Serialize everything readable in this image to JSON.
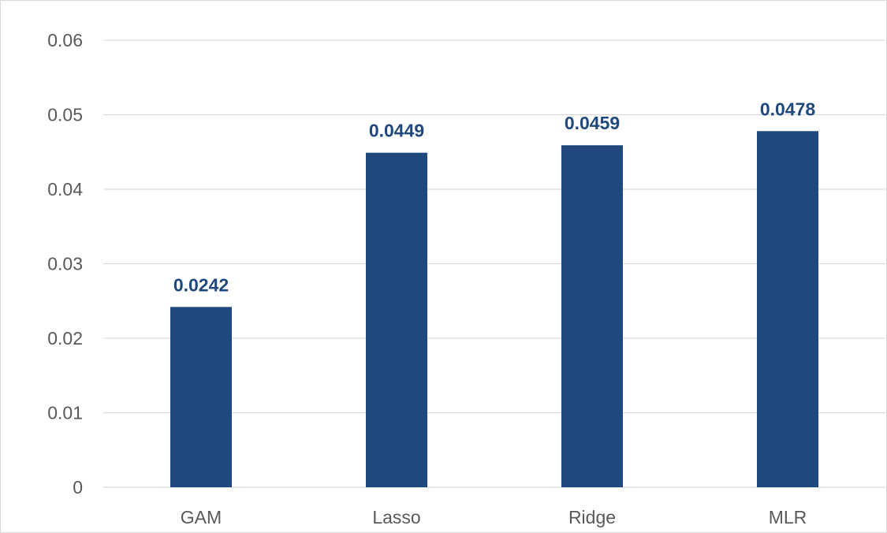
{
  "chart_data": {
    "type": "bar",
    "categories": [
      "GAM",
      "Lasso",
      "Ridge",
      "MLR"
    ],
    "values": [
      0.0242,
      0.0449,
      0.0459,
      0.0478
    ],
    "data_labels": [
      "0.0242",
      "0.0449",
      "0.0459",
      "0.0478"
    ],
    "title": "",
    "xlabel": "",
    "ylabel": "",
    "ylim": [
      0,
      0.06
    ],
    "y_ticks": [
      0,
      0.01,
      0.02,
      0.03,
      0.04,
      0.05,
      0.06
    ],
    "y_tick_labels": [
      "0",
      "0.01",
      "0.02",
      "0.03",
      "0.04",
      "0.05",
      "0.06"
    ],
    "grid": true,
    "legend": "none",
    "colors": {
      "bar": "#1f497d",
      "data_label": "#1f497d",
      "gridline": "#d9d9d9",
      "tick_text": "#595959"
    }
  }
}
